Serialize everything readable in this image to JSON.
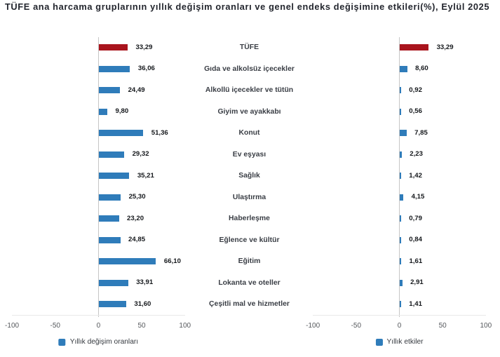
{
  "title": "TÜFE ana harcama gruplarının yıllık değişim oranları ve genel endeks değişimine etkileri(%), Eylül 2025",
  "chart_data": {
    "type": "bar",
    "orientation": "horizontal",
    "categories": [
      "TÜFE",
      "Gıda ve alkolsüz içecekler",
      "Alkollü içecekler ve tütün",
      "Giyim ve ayakkabı",
      "Konut",
      "Ev eşyası",
      "Sağlık",
      "Ulaştırma",
      "Haberleşme",
      "Eğlence ve kültür",
      "Eğitim",
      "Lokanta ve oteller",
      "Çeşitli mal ve hizmetler"
    ],
    "series": [
      {
        "name": "Yıllık değişim oranları",
        "panel": "left",
        "values": [
          33.29,
          36.06,
          24.49,
          9.8,
          51.36,
          29.32,
          35.21,
          25.3,
          23.2,
          24.85,
          66.1,
          33.91,
          31.6
        ],
        "value_labels": [
          "33,29",
          "36,06",
          "24,49",
          "9,80",
          "51,36",
          "29,32",
          "35,21",
          "25,30",
          "23,20",
          "24,85",
          "66,10",
          "33,91",
          "31,60"
        ]
      },
      {
        "name": "Yıllık etkiler",
        "panel": "right",
        "values": [
          33.29,
          8.6,
          0.92,
          0.56,
          7.85,
          2.23,
          1.42,
          4.15,
          0.79,
          0.84,
          1.61,
          2.91,
          1.41
        ],
        "value_labels": [
          "33,29",
          "8,60",
          "0,92",
          "0,56",
          "7,85",
          "2,23",
          "1,42",
          "4,15",
          "0,79",
          "0,84",
          "1,61",
          "2,91",
          "1,41"
        ]
      }
    ],
    "xlim": [
      -100,
      100
    ],
    "tick_values": [
      -100,
      -50,
      0,
      50,
      100
    ],
    "tick_labels": [
      "-100",
      "-50",
      "0",
      "50",
      "100"
    ],
    "grid": false,
    "legend_position": "bottom",
    "highlight_category": "TÜFE",
    "colors": {
      "bar": "#2f7cba",
      "highlight_bar": "#a9141d"
    }
  }
}
